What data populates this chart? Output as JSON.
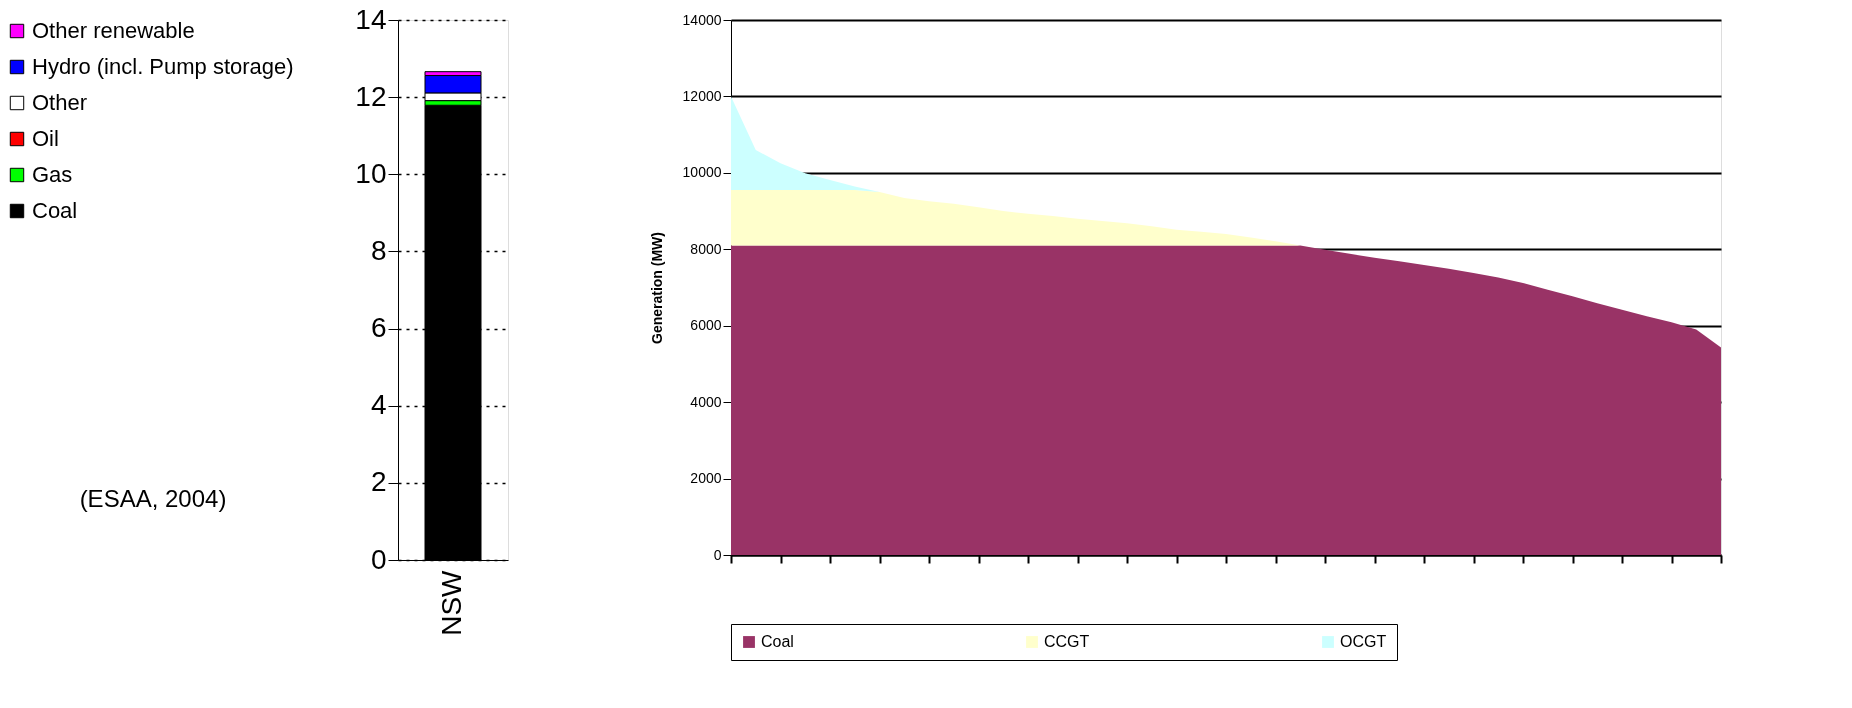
{
  "chart_data": [
    {
      "type": "bar",
      "categories": [
        "NSW"
      ],
      "stacked": true,
      "ylim": [
        0,
        14
      ],
      "yticks": [
        0,
        2,
        4,
        6,
        8,
        10,
        12,
        14
      ],
      "grid": "y",
      "legend": "left",
      "annotations": [
        "(ESAA, 2004)"
      ],
      "series": [
        {
          "name": "Coal",
          "color": "#000000",
          "values": [
            11.79
          ]
        },
        {
          "name": "Gas",
          "color": "#00ff00",
          "values": [
            0.12
          ]
        },
        {
          "name": "Oil",
          "color": "#ff0000",
          "values": [
            null
          ]
        },
        {
          "name": "Other",
          "color": "#ffffff",
          "values": [
            0.2
          ]
        },
        {
          "name": "Hydro (incl. Pump storage)",
          "color": "#0000ff",
          "values": [
            0.45
          ]
        },
        {
          "name": "Other renewable",
          "color": "#ff00ff",
          "values": [
            0.1
          ]
        }
      ]
    },
    {
      "type": "area",
      "stacked": true,
      "ylabel": "Generation (MW)",
      "ylim": [
        0,
        14000
      ],
      "yticks": [
        0,
        2000,
        4000,
        6000,
        8000,
        10000,
        12000,
        14000
      ],
      "grid": "y",
      "legend": "bottom",
      "tick_labels": "y",
      "categories": [
        null,
        null,
        null,
        null,
        null,
        null,
        null,
        null,
        null,
        null,
        null,
        null,
        null,
        null,
        null,
        null,
        null,
        null,
        null,
        null,
        null,
        null,
        null,
        null,
        null,
        null,
        null,
        null,
        null,
        null,
        null,
        null,
        null,
        null,
        null,
        null,
        null,
        null,
        null,
        null,
        null
      ],
      "series": [
        {
          "name": "Coal",
          "color": "#993366",
          "values": [
            8100,
            8100,
            8100,
            8100,
            8100,
            8100,
            8100,
            8100,
            8100,
            8100,
            8100,
            8100,
            8100,
            8100,
            8100,
            8100,
            8100,
            8100,
            8100,
            8100,
            8100,
            8100,
            8100,
            8100,
            7990,
            7880,
            7780,
            7690,
            7590,
            7490,
            7380,
            7260,
            7120,
            6940,
            6770,
            6590,
            6420,
            6250,
            6090,
            5900,
            5430
          ]
        },
        {
          "name": "CCGT",
          "color": "#ffffcc",
          "values": [
            1450,
            1450,
            1450,
            1450,
            1450,
            1450,
            1400,
            1240,
            1160,
            1090,
            1000,
            900,
            830,
            770,
            700,
            640,
            580,
            500,
            410,
            360,
            300,
            210,
            110,
            0,
            0,
            0,
            0,
            0,
            0,
            0,
            0,
            0,
            0,
            0,
            0,
            0,
            0,
            0,
            0,
            0,
            0
          ]
        },
        {
          "name": "OCGT",
          "color": "#ccffff",
          "values": [
            2450,
            1050,
            700,
            440,
            260,
            90,
            0,
            0,
            0,
            0,
            0,
            0,
            0,
            0,
            0,
            0,
            0,
            0,
            0,
            0,
            0,
            0,
            0,
            0,
            0,
            0,
            0,
            0,
            0,
            0,
            0,
            0,
            0,
            0,
            0,
            0,
            0,
            0,
            0,
            0,
            0
          ]
        }
      ]
    }
  ]
}
